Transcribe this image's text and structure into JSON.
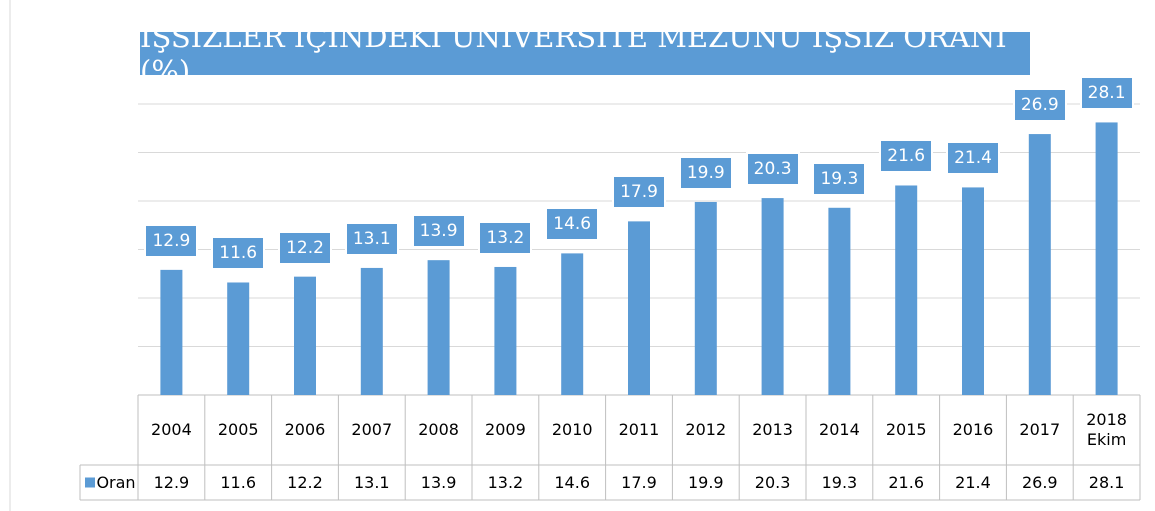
{
  "chart_data": {
    "type": "bar",
    "title": "İŞSİZLER İÇİNDEKİ ÜNİVERSİTE MEZUNU İŞSİZ ORANI (%)",
    "categories": [
      "2004",
      "2005",
      "2006",
      "2007",
      "2008",
      "2009",
      "2010",
      "2011",
      "2012",
      "2013",
      "2014",
      "2015",
      "2016",
      "2017",
      "2018 Ekim"
    ],
    "series": [
      {
        "name": "Oran",
        "color": "#5b9bd5",
        "values": [
          12.9,
          11.6,
          12.2,
          13.1,
          13.9,
          13.2,
          14.6,
          17.9,
          19.9,
          20.3,
          19.3,
          21.6,
          21.4,
          26.9,
          28.1
        ]
      }
    ],
    "ylim": [
      0,
      30
    ],
    "yticks": [
      0,
      5,
      10,
      15,
      20,
      25,
      30
    ],
    "grid": true,
    "legend": "data-table"
  }
}
